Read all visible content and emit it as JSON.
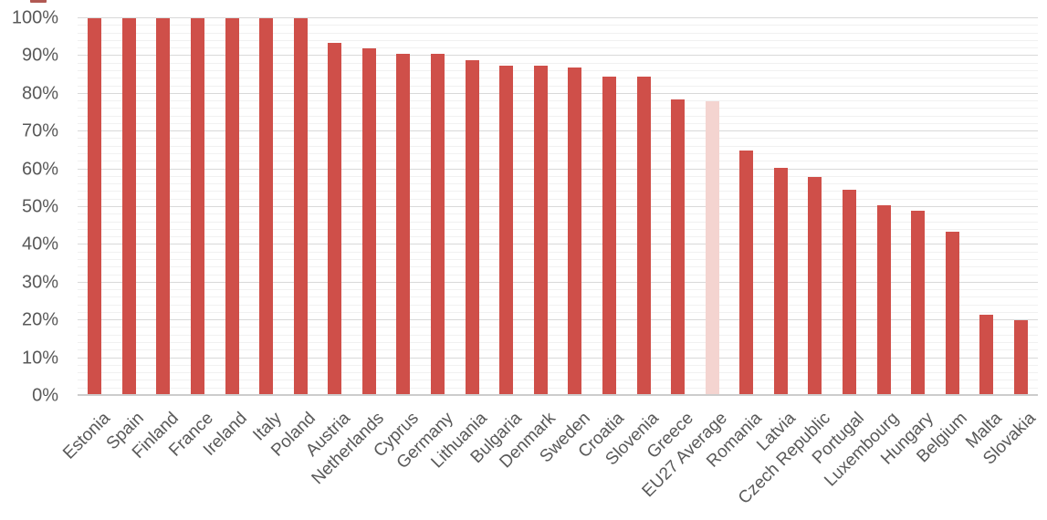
{
  "chart_data": {
    "type": "bar",
    "title": "",
    "xlabel": "",
    "ylabel": "",
    "categories": [
      "Estonia",
      "Spain",
      "Finland",
      "France",
      "Ireland",
      "Italy",
      "Poland",
      "Austria",
      "Netherlands",
      "Cyprus",
      "Germany",
      "Lithuania",
      "Bulgaria",
      "Denmark",
      "Sweden",
      "Croatia",
      "Slovenia",
      "Greece",
      "EU27 Average",
      "Romania",
      "Latvia",
      "Czech Republic",
      "Portugal",
      "Luxembourg",
      "Hungary",
      "Belgium",
      "Malta",
      "Slovakia"
    ],
    "values": [
      100,
      100,
      100,
      100,
      100,
      100,
      100,
      93.5,
      92,
      90.5,
      90.5,
      89,
      87.5,
      87.5,
      87,
      84.5,
      84.5,
      78.5,
      78,
      65,
      60.5,
      58,
      54.5,
      50.5,
      49,
      43.5,
      21.5,
      20
    ],
    "value_unit": "%",
    "highlight_category": "EU27 Average",
    "y_ticks": [
      "0%",
      "10%",
      "20%",
      "30%",
      "40%",
      "50%",
      "60%",
      "70%",
      "80%",
      "90%",
      "100%"
    ],
    "ylim": [
      0,
      100
    ],
    "gridline_major_step": 10,
    "gridline_minor_step": 2,
    "grid": "on",
    "legend_position": "none",
    "colors": {
      "bar": "#cf4f49",
      "highlight_bar": "#f4d4d0",
      "major_gridline": "#d9d9d9",
      "minor_gridline": "#f1f1f1",
      "axis_line": "#cccccc",
      "label_text": "#595959"
    }
  }
}
